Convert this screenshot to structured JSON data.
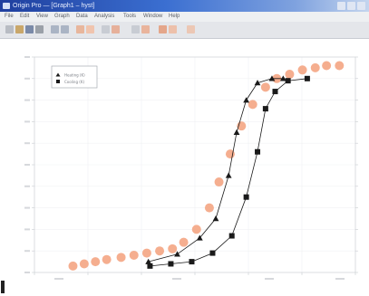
{
  "window": {
    "title": "Origin Pro — [Graph1 – hyst]"
  },
  "menu": {
    "items": [
      "File",
      "Edit",
      "View",
      "Graph",
      "Data",
      "Analysis",
      "Tools",
      "Window",
      "Help"
    ]
  },
  "toolbar": {
    "buttons": [
      "new",
      "open",
      "save",
      "print",
      "zoom-in",
      "zoom-out",
      "select",
      "draw",
      "text",
      "data-reader",
      "scale",
      "layer"
    ]
  },
  "legend": {
    "entries": [
      {
        "label": "Heating (K)",
        "marker": "triangle",
        "color": "#1a1a1a"
      },
      {
        "label": "Cooling (K)",
        "marker": "square",
        "color": "#1a1a1a"
      }
    ]
  },
  "chart_data": {
    "type": "scatter",
    "xlim": [
      0,
      100
    ],
    "ylim": [
      0,
      1
    ],
    "grid": true,
    "legend_position": "top-left",
    "series": [
      {
        "marker": "triangle",
        "color": "#1a1a1a",
        "line": true,
        "points": [
          [
            35.5,
            0.05
          ],
          [
            44.5,
            0.085
          ],
          [
            51.5,
            0.16
          ],
          [
            56.5,
            0.25
          ],
          [
            60.5,
            0.45
          ],
          [
            63,
            0.65
          ],
          [
            66,
            0.8
          ],
          [
            69.5,
            0.88
          ],
          [
            74,
            0.9
          ],
          [
            77.5,
            0.9
          ]
        ]
      },
      {
        "marker": "square",
        "color": "#1a1a1a",
        "line": true,
        "points": [
          [
            36,
            0.03
          ],
          [
            42.5,
            0.04
          ],
          [
            49,
            0.05
          ],
          [
            55.5,
            0.09
          ],
          [
            61.5,
            0.17
          ],
          [
            66,
            0.35
          ],
          [
            69.5,
            0.56
          ],
          [
            72,
            0.76
          ],
          [
            75,
            0.84
          ],
          [
            79,
            0.89
          ],
          [
            85,
            0.9
          ]
        ]
      },
      {
        "marker": "circle",
        "color": "#f4a583",
        "line": false,
        "points": [
          [
            12,
            0.03
          ],
          [
            15.5,
            0.04
          ],
          [
            19,
            0.05
          ],
          [
            22.5,
            0.06
          ],
          [
            27,
            0.07
          ],
          [
            31,
            0.08
          ],
          [
            35,
            0.09
          ],
          [
            39,
            0.1
          ],
          [
            43,
            0.11
          ],
          [
            46.5,
            0.14
          ],
          [
            50.5,
            0.2
          ],
          [
            54.5,
            0.3
          ],
          [
            57.5,
            0.42
          ],
          [
            61,
            0.55
          ],
          [
            64.5,
            0.68
          ],
          [
            68,
            0.78
          ],
          [
            72,
            0.86
          ],
          [
            75.5,
            0.9
          ],
          [
            79.5,
            0.92
          ],
          [
            83.5,
            0.94
          ],
          [
            87.5,
            0.95
          ],
          [
            91,
            0.96
          ],
          [
            95,
            0.96
          ]
        ]
      }
    ]
  }
}
